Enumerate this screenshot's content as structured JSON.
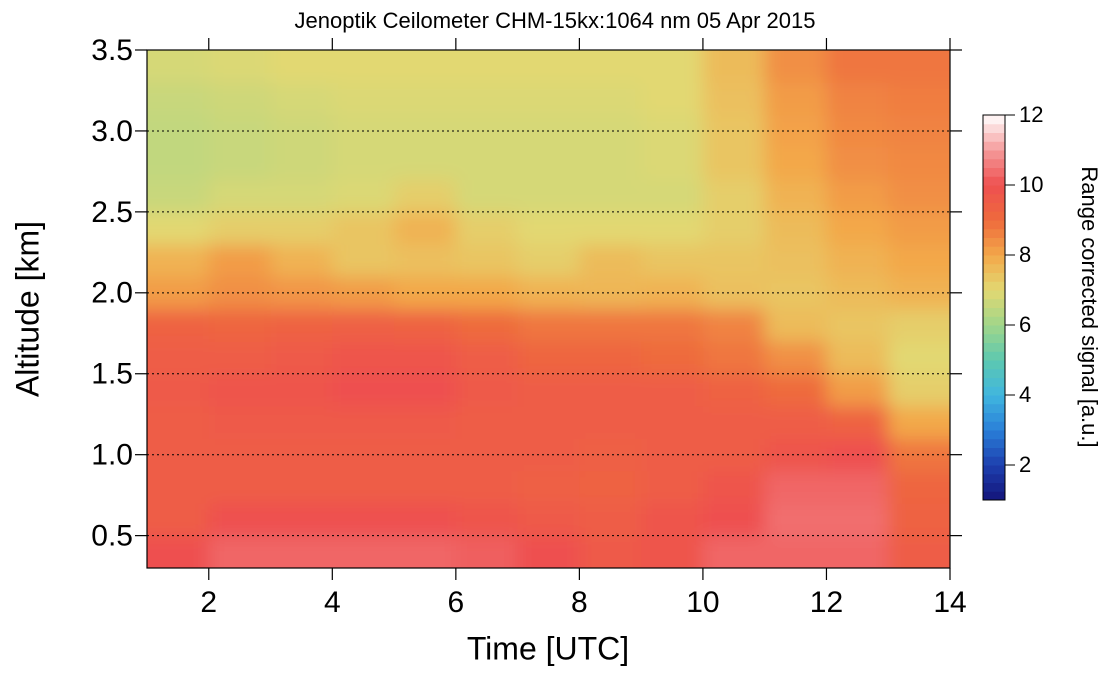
{
  "chart_data": {
    "type": "heatmap",
    "title": "Jenoptik Ceilometer CHM-15kx:1064 nm 05 Apr 2015",
    "x_label": "Time [UTC]",
    "y_label": "Altitude [km]",
    "colorbar_label": "Range corrected signal [a.u.]",
    "x": [
      1.5,
      2.5,
      3.5,
      4.5,
      5.5,
      6.5,
      7.5,
      8.5,
      9.5,
      10.5,
      11.5,
      12.5,
      13.5
    ],
    "y": [
      0.4,
      0.6,
      0.8,
      1.0,
      1.2,
      1.4,
      1.6,
      1.8,
      2.0,
      2.2,
      2.4,
      2.6,
      2.8,
      3.0,
      3.2,
      3.4
    ],
    "z": [
      [
        10,
        10.3,
        10.3,
        10.3,
        10.3,
        10.2,
        10,
        9.6,
        9.8,
        10.3,
        10.3,
        10.3,
        9.5
      ],
      [
        9.5,
        10,
        10,
        10,
        10,
        9.8,
        9.6,
        9.5,
        9.8,
        10,
        10.4,
        10.4,
        9.3
      ],
      [
        9.5,
        9.5,
        9.5,
        9.5,
        9.5,
        9.5,
        9.4,
        9.3,
        9.5,
        9.8,
        10.3,
        10.3,
        9.2
      ],
      [
        9.5,
        9.5,
        9.5,
        9.5,
        9.5,
        9.5,
        9.5,
        9.4,
        9.5,
        9.5,
        9.8,
        10,
        8.8
      ],
      [
        9.5,
        9.6,
        9.6,
        9.6,
        9.6,
        9.5,
        9.5,
        9.5,
        9.5,
        9.5,
        9.5,
        9.3,
        8
      ],
      [
        9.6,
        9.8,
        9.8,
        10,
        10,
        9.6,
        9.5,
        9.5,
        9.5,
        9.3,
        9,
        8.2,
        7.2
      ],
      [
        9.5,
        9.5,
        9.6,
        9.8,
        9.8,
        9.5,
        9.2,
        9.2,
        9,
        8.8,
        8.4,
        7.6,
        7
      ],
      [
        9.3,
        9.2,
        9.3,
        9.4,
        9.3,
        9,
        8.8,
        8.8,
        8.8,
        8.6,
        7.6,
        7.4,
        7.2
      ],
      [
        8.2,
        8.4,
        8.3,
        8.2,
        8,
        8,
        7.8,
        7.7,
        7.8,
        7.5,
        7.4,
        7.6,
        7.8
      ],
      [
        7.8,
        8.2,
        7.8,
        7.4,
        7.5,
        7.4,
        7.2,
        7.6,
        7.4,
        7.4,
        7.5,
        7.8,
        8
      ],
      [
        7,
        7.2,
        7.2,
        7.4,
        7.8,
        7.2,
        7,
        7,
        7,
        7.2,
        7.6,
        8,
        8.2
      ],
      [
        6.6,
        6.8,
        6.8,
        6.9,
        7.2,
        6.8,
        6.8,
        6.8,
        6.8,
        7.2,
        7.8,
        8.2,
        8.4
      ],
      [
        6.5,
        6.6,
        6.7,
        6.8,
        6.8,
        6.8,
        6.8,
        6.8,
        6.9,
        7.4,
        8,
        8.4,
        8.5
      ],
      [
        6.5,
        6.6,
        6.7,
        6.8,
        6.8,
        6.8,
        6.8,
        6.8,
        6.9,
        7.4,
        8.1,
        8.5,
        8.6
      ],
      [
        6.6,
        6.7,
        6.8,
        6.9,
        6.9,
        6.9,
        6.9,
        6.9,
        7,
        7.5,
        8.2,
        8.6,
        8.7
      ],
      [
        6.8,
        6.9,
        7,
        7,
        7,
        7,
        7,
        7,
        7,
        7.6,
        8.4,
        8.8,
        8.8
      ]
    ],
    "xlim": [
      1,
      14
    ],
    "ylim": [
      0.3,
      3.5
    ],
    "clim": [
      1,
      12
    ],
    "xticks": [
      2,
      4,
      6,
      8,
      10,
      12,
      14
    ],
    "yticks": [
      0.5,
      {
        "value": 1,
        "label": "1.0"
      },
      1.5,
      {
        "value": 2,
        "label": "2.0"
      },
      2.5,
      {
        "value": 3,
        "label": "3.0"
      },
      3.5
    ],
    "cticks": [
      2,
      4,
      6,
      8,
      10,
      12
    ],
    "grid": true,
    "colormap": [
      "#14157a",
      "#1d3fae",
      "#2a7fd8",
      "#40b6df",
      "#5dc8b0",
      "#a0d68a",
      "#e2d872",
      "#f3a84a",
      "#ee6a3c",
      "#ee5050",
      "#f59a9a",
      "#ffffff"
    ]
  }
}
